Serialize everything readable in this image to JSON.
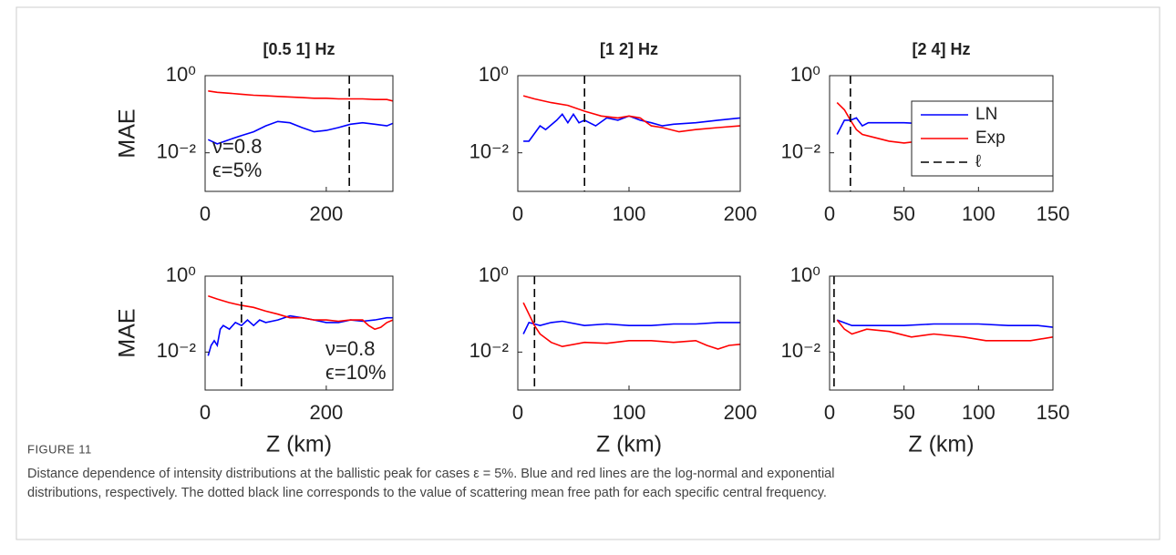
{
  "chart_data": [
    {
      "type": "line",
      "title": "[0.5 1] Hz",
      "ylabel": "MAE",
      "log_y": true,
      "xlim": [
        0,
        310
      ],
      "xticks": [
        0,
        200
      ],
      "ylim": [
        0.001,
        1
      ],
      "yticks": [
        {
          "value": 0.01,
          "label": "10⁻²"
        },
        {
          "value": 1,
          "label": "10⁰"
        }
      ],
      "annotations": [
        "ν=0.8",
        "ϵ=5%"
      ],
      "vline": {
        "name": "ℓ",
        "value": 238,
        "color": "#000000"
      },
      "series": [
        {
          "name": "LN",
          "color": "#0000ff",
          "x": [
            5,
            20,
            40,
            60,
            80,
            100,
            120,
            140,
            160,
            180,
            200,
            220,
            240,
            260,
            280,
            300,
            310
          ],
          "values": [
            0.022,
            0.017,
            0.022,
            0.028,
            0.035,
            0.05,
            0.065,
            0.06,
            0.045,
            0.035,
            0.038,
            0.045,
            0.055,
            0.06,
            0.055,
            0.05,
            0.058
          ]
        },
        {
          "name": "Exp",
          "color": "#ff0000",
          "x": [
            5,
            20,
            40,
            60,
            80,
            100,
            120,
            140,
            160,
            180,
            200,
            220,
            240,
            260,
            280,
            300,
            310
          ],
          "values": [
            0.4,
            0.37,
            0.35,
            0.33,
            0.31,
            0.3,
            0.29,
            0.28,
            0.27,
            0.26,
            0.26,
            0.25,
            0.25,
            0.25,
            0.24,
            0.24,
            0.22
          ]
        }
      ]
    },
    {
      "type": "line",
      "title": "[1 2] Hz",
      "log_y": true,
      "xlim": [
        0,
        200
      ],
      "xticks": [
        0,
        100,
        200
      ],
      "ylim": [
        0.001,
        1
      ],
      "yticks": [
        {
          "value": 0.01,
          "label": "10⁻²"
        },
        {
          "value": 1,
          "label": "10⁰"
        }
      ],
      "vline": {
        "name": "ℓ",
        "value": 60,
        "color": "#000000"
      },
      "series": [
        {
          "name": "LN",
          "color": "#0000ff",
          "x": [
            5,
            10,
            20,
            25,
            35,
            40,
            45,
            50,
            55,
            60,
            70,
            80,
            90,
            100,
            110,
            120,
            130,
            140,
            160,
            180,
            200
          ],
          "values": [
            0.02,
            0.02,
            0.05,
            0.04,
            0.07,
            0.1,
            0.06,
            0.1,
            0.06,
            0.07,
            0.05,
            0.08,
            0.07,
            0.09,
            0.07,
            0.06,
            0.05,
            0.055,
            0.06,
            0.07,
            0.08
          ]
        },
        {
          "name": "Exp",
          "color": "#ff0000",
          "x": [
            5,
            15,
            30,
            45,
            60,
            75,
            90,
            100,
            110,
            120,
            130,
            145,
            160,
            180,
            200
          ],
          "values": [
            0.3,
            0.25,
            0.2,
            0.17,
            0.12,
            0.09,
            0.08,
            0.09,
            0.08,
            0.05,
            0.045,
            0.035,
            0.04,
            0.045,
            0.05
          ]
        }
      ]
    },
    {
      "type": "line",
      "title": "[2 4] Hz",
      "log_y": true,
      "legend": true,
      "xlim": [
        0,
        150
      ],
      "xticks": [
        0,
        50,
        100,
        150
      ],
      "ylim": [
        0.001,
        1
      ],
      "yticks": [
        {
          "value": 0.01,
          "label": "10⁻²"
        },
        {
          "value": 1,
          "label": "10⁰"
        }
      ],
      "vline": {
        "name": "ℓ",
        "value": 14,
        "color": "#000000"
      },
      "series": [
        {
          "name": "LN",
          "color": "#0000ff",
          "x": [
            5,
            10,
            14,
            18,
            22,
            26,
            35,
            50,
            70
          ],
          "values": [
            0.03,
            0.07,
            0.07,
            0.08,
            0.05,
            0.06,
            0.06,
            0.06,
            0.055
          ]
        },
        {
          "name": "Exp",
          "color": "#ff0000",
          "x": [
            5,
            10,
            14,
            18,
            22,
            30,
            40,
            50,
            60,
            80,
            100,
            120,
            150
          ],
          "values": [
            0.2,
            0.13,
            0.07,
            0.04,
            0.03,
            0.025,
            0.02,
            0.018,
            0.02,
            0.02,
            0.02,
            0.02,
            0.02
          ]
        }
      ]
    },
    {
      "type": "line",
      "ylabel": "MAE",
      "xlabel": "Z (km)",
      "log_y": true,
      "xlim": [
        0,
        310
      ],
      "xticks": [
        0,
        200
      ],
      "ylim": [
        0.001,
        1
      ],
      "yticks": [
        {
          "value": 0.01,
          "label": "10⁻²"
        },
        {
          "value": 1,
          "label": "10⁰"
        }
      ],
      "annotations": [
        "ν=0.8",
        "ϵ=10%"
      ],
      "vline": {
        "name": "ℓ",
        "value": 60,
        "color": "#000000"
      },
      "series": [
        {
          "name": "LN",
          "color": "#0000ff",
          "x": [
            5,
            10,
            15,
            20,
            25,
            30,
            40,
            50,
            60,
            70,
            80,
            90,
            100,
            120,
            140,
            160,
            180,
            200,
            220,
            240,
            260,
            280,
            300,
            310
          ],
          "values": [
            0.008,
            0.015,
            0.02,
            0.015,
            0.04,
            0.05,
            0.04,
            0.06,
            0.05,
            0.07,
            0.05,
            0.07,
            0.06,
            0.07,
            0.09,
            0.08,
            0.07,
            0.06,
            0.06,
            0.07,
            0.065,
            0.07,
            0.08,
            0.08
          ]
        },
        {
          "name": "Exp",
          "color": "#ff0000",
          "x": [
            5,
            20,
            40,
            60,
            80,
            100,
            120,
            140,
            160,
            180,
            200,
            220,
            240,
            260,
            270,
            280,
            290,
            300,
            310
          ],
          "values": [
            0.3,
            0.25,
            0.2,
            0.17,
            0.15,
            0.12,
            0.1,
            0.08,
            0.08,
            0.07,
            0.07,
            0.065,
            0.07,
            0.07,
            0.05,
            0.04,
            0.045,
            0.06,
            0.07
          ]
        }
      ]
    },
    {
      "type": "line",
      "xlabel": "Z (km)",
      "log_y": true,
      "xlim": [
        0,
        200
      ],
      "xticks": [
        0,
        100,
        200
      ],
      "ylim": [
        0.001,
        1
      ],
      "yticks": [
        {
          "value": 0.01,
          "label": "10⁻²"
        },
        {
          "value": 1,
          "label": "10⁰"
        }
      ],
      "vline": {
        "name": "ℓ",
        "value": 15,
        "color": "#000000"
      },
      "series": [
        {
          "name": "LN",
          "color": "#0000ff",
          "x": [
            5,
            10,
            15,
            20,
            30,
            40,
            60,
            80,
            100,
            120,
            140,
            160,
            180,
            200
          ],
          "values": [
            0.03,
            0.06,
            0.055,
            0.05,
            0.06,
            0.065,
            0.05,
            0.055,
            0.05,
            0.05,
            0.055,
            0.055,
            0.06,
            0.06
          ]
        },
        {
          "name": "Exp",
          "color": "#ff0000",
          "x": [
            5,
            10,
            15,
            20,
            30,
            40,
            60,
            80,
            100,
            120,
            140,
            160,
            170,
            180,
            190,
            200
          ],
          "values": [
            0.2,
            0.1,
            0.05,
            0.03,
            0.018,
            0.014,
            0.018,
            0.017,
            0.02,
            0.02,
            0.018,
            0.02,
            0.015,
            0.012,
            0.015,
            0.016
          ]
        }
      ]
    },
    {
      "type": "line",
      "xlabel": "Z (km)",
      "log_y": true,
      "xlim": [
        0,
        150
      ],
      "xticks": [
        0,
        50,
        100,
        150
      ],
      "ylim": [
        0.001,
        1
      ],
      "yticks": [
        {
          "value": 0.01,
          "label": "10⁻²"
        },
        {
          "value": 1,
          "label": "10⁰"
        }
      ],
      "vline": {
        "name": "ℓ",
        "value": 3,
        "color": "#000000"
      },
      "series": [
        {
          "name": "LN",
          "color": "#0000ff",
          "x": [
            5,
            15,
            30,
            50,
            70,
            100,
            120,
            140,
            150
          ],
          "values": [
            0.07,
            0.05,
            0.05,
            0.05,
            0.055,
            0.055,
            0.05,
            0.05,
            0.045
          ]
        },
        {
          "name": "Exp",
          "color": "#ff0000",
          "x": [
            5,
            10,
            15,
            25,
            40,
            55,
            70,
            90,
            105,
            120,
            135,
            150
          ],
          "values": [
            0.07,
            0.04,
            0.03,
            0.04,
            0.035,
            0.025,
            0.03,
            0.025,
            0.02,
            0.02,
            0.02,
            0.025
          ]
        }
      ]
    }
  ],
  "caption": {
    "label": "FIGURE 11",
    "lines": [
      "Distance dependence of intensity distributions at the ballistic peak for cases ε = 5%. Blue and red lines are the log-normal and exponential",
      "distributions, respectively. The dotted black line corresponds to the value of scattering mean free path for each specific central frequency."
    ]
  }
}
